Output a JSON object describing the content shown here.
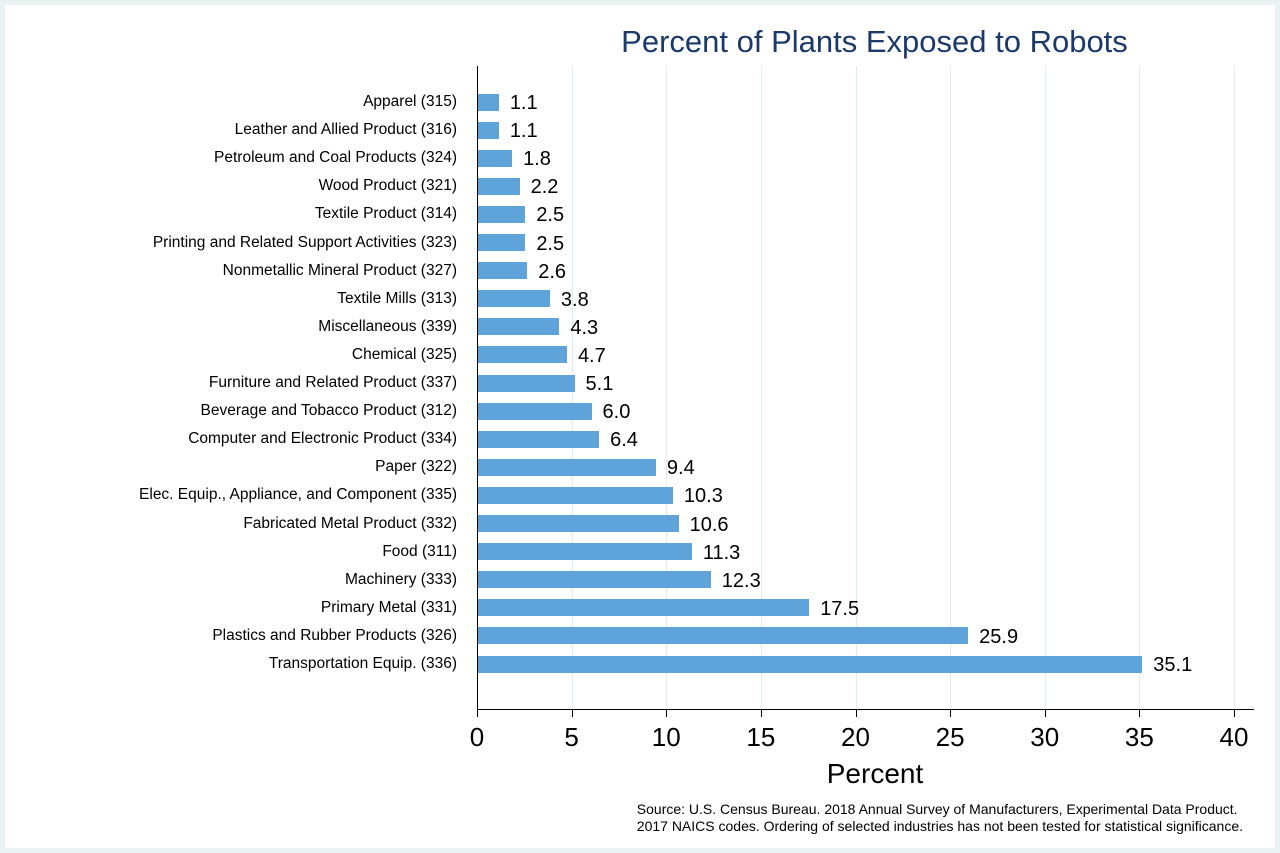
{
  "chart_data": {
    "type": "bar",
    "orientation": "horizontal",
    "title": "Percent of Plants Exposed to Robots",
    "xlabel": "Percent",
    "ylabel": "",
    "xlim": [
      0,
      40
    ],
    "xticks": [
      "0",
      "5",
      "10",
      "15",
      "20",
      "25",
      "30",
      "35",
      "40"
    ],
    "grid": true,
    "categories": [
      "Apparel (315)",
      "Leather and Allied Product (316)",
      "Petroleum and Coal Products (324)",
      "Wood Product (321)",
      "Textile Product (314)",
      "Printing and Related Support Activities (323)",
      "Nonmetallic Mineral Product (327)",
      "Textile Mills (313)",
      "Miscellaneous (339)",
      "Chemical (325)",
      "Furniture and Related Product (337)",
      "Beverage and Tobacco Product (312)",
      "Computer and Electronic Product (334)",
      "Paper (322)",
      "Elec. Equip., Appliance, and Component (335)",
      "Fabricated Metal Product (332)",
      "Food (311)",
      "Machinery (333)",
      "Primary Metal (331)",
      "Plastics and Rubber Products (326)",
      "Transportation Equip. (336)"
    ],
    "values": [
      1.1,
      1.1,
      1.8,
      2.2,
      2.5,
      2.5,
      2.6,
      3.8,
      4.3,
      4.7,
      5.1,
      6.0,
      6.4,
      9.4,
      10.3,
      10.6,
      11.3,
      12.3,
      17.5,
      25.9,
      35.1
    ],
    "value_labels": [
      "1.1",
      "1.1",
      "1.8",
      "2.2",
      "2.5",
      "2.5",
      "2.6",
      "3.8",
      "4.3",
      "4.7",
      "5.1",
      "6.0",
      "6.4",
      "9.4",
      "10.3",
      "10.6",
      "11.3",
      "12.3",
      "17.5",
      "25.9",
      "35.1"
    ],
    "bar_color": "#5fa3db",
    "note_lines": [
      "Source: U.S. Census Bureau. 2018 Annual Survey of Manufacturers, Experimental Data Product.",
      "2017 NAICS codes. Ordering of selected industries has not been tested for statistical significance."
    ]
  }
}
